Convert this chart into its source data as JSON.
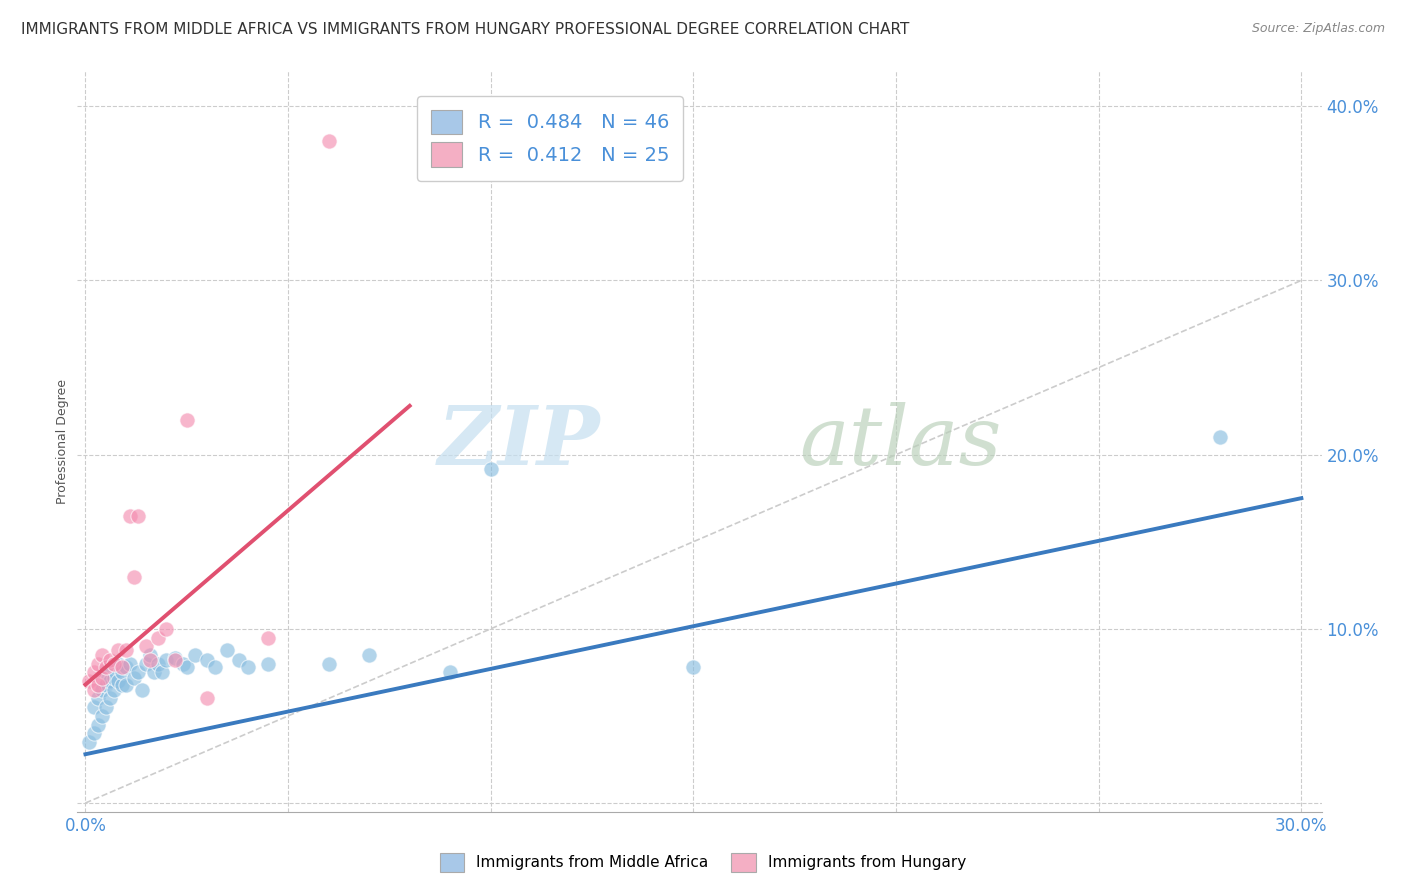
{
  "title": "IMMIGRANTS FROM MIDDLE AFRICA VS IMMIGRANTS FROM HUNGARY PROFESSIONAL DEGREE CORRELATION CHART",
  "source": "Source: ZipAtlas.com",
  "ylabel": "Professional Degree",
  "ytick_vals": [
    0.0,
    0.1,
    0.2,
    0.3,
    0.4
  ],
  "ytick_labels": [
    "",
    "10.0%",
    "20.0%",
    "30.0%",
    "40.0%"
  ],
  "xtick_vals": [
    0.0,
    0.05,
    0.1,
    0.15,
    0.2,
    0.25,
    0.3
  ],
  "xtick_labels_show": [
    "0.0%",
    "",
    "",
    "",
    "",
    "",
    "30.0%"
  ],
  "xlim": [
    -0.002,
    0.305
  ],
  "ylim": [
    -0.005,
    0.42
  ],
  "blue_scatter_x": [
    0.001,
    0.002,
    0.002,
    0.003,
    0.003,
    0.004,
    0.004,
    0.005,
    0.005,
    0.005,
    0.006,
    0.006,
    0.007,
    0.007,
    0.008,
    0.008,
    0.009,
    0.009,
    0.01,
    0.01,
    0.011,
    0.012,
    0.013,
    0.014,
    0.015,
    0.016,
    0.017,
    0.018,
    0.019,
    0.02,
    0.022,
    0.024,
    0.025,
    0.027,
    0.03,
    0.032,
    0.035,
    0.038,
    0.04,
    0.045,
    0.06,
    0.07,
    0.09,
    0.1,
    0.15,
    0.28
  ],
  "blue_scatter_y": [
    0.035,
    0.04,
    0.055,
    0.045,
    0.06,
    0.05,
    0.065,
    0.055,
    0.068,
    0.075,
    0.06,
    0.07,
    0.065,
    0.072,
    0.07,
    0.08,
    0.068,
    0.075,
    0.068,
    0.078,
    0.08,
    0.072,
    0.075,
    0.065,
    0.08,
    0.085,
    0.075,
    0.08,
    0.075,
    0.082,
    0.083,
    0.08,
    0.078,
    0.085,
    0.082,
    0.078,
    0.088,
    0.082,
    0.078,
    0.08,
    0.08,
    0.085,
    0.075,
    0.192,
    0.078,
    0.21
  ],
  "pink_scatter_x": [
    0.001,
    0.002,
    0.002,
    0.003,
    0.003,
    0.004,
    0.004,
    0.005,
    0.006,
    0.007,
    0.008,
    0.009,
    0.01,
    0.011,
    0.012,
    0.013,
    0.015,
    0.016,
    0.018,
    0.02,
    0.022,
    0.025,
    0.03,
    0.045,
    0.06
  ],
  "pink_scatter_y": [
    0.07,
    0.065,
    0.075,
    0.068,
    0.08,
    0.072,
    0.085,
    0.078,
    0.082,
    0.08,
    0.088,
    0.078,
    0.088,
    0.165,
    0.13,
    0.165,
    0.09,
    0.082,
    0.095,
    0.1,
    0.082,
    0.22,
    0.06,
    0.095,
    0.38
  ],
  "blue_line_x": [
    0.0,
    0.3
  ],
  "blue_line_y": [
    0.028,
    0.175
  ],
  "pink_line_x": [
    0.0,
    0.08
  ],
  "pink_line_y": [
    0.068,
    0.228
  ],
  "diag_line_x": [
    0.0,
    0.3
  ],
  "diag_line_y": [
    0.0,
    0.3
  ],
  "blue_color": "#89bde0",
  "pink_color": "#f48fb1",
  "blue_line_color": "#3a7abf",
  "pink_line_color": "#e05070",
  "diag_line_color": "#cccccc",
  "legend_r1": "0.484",
  "legend_n1": "46",
  "legend_r2": "0.412",
  "legend_n2": "25",
  "title_fontsize": 11,
  "axis_label_fontsize": 9,
  "tick_fontsize": 12
}
